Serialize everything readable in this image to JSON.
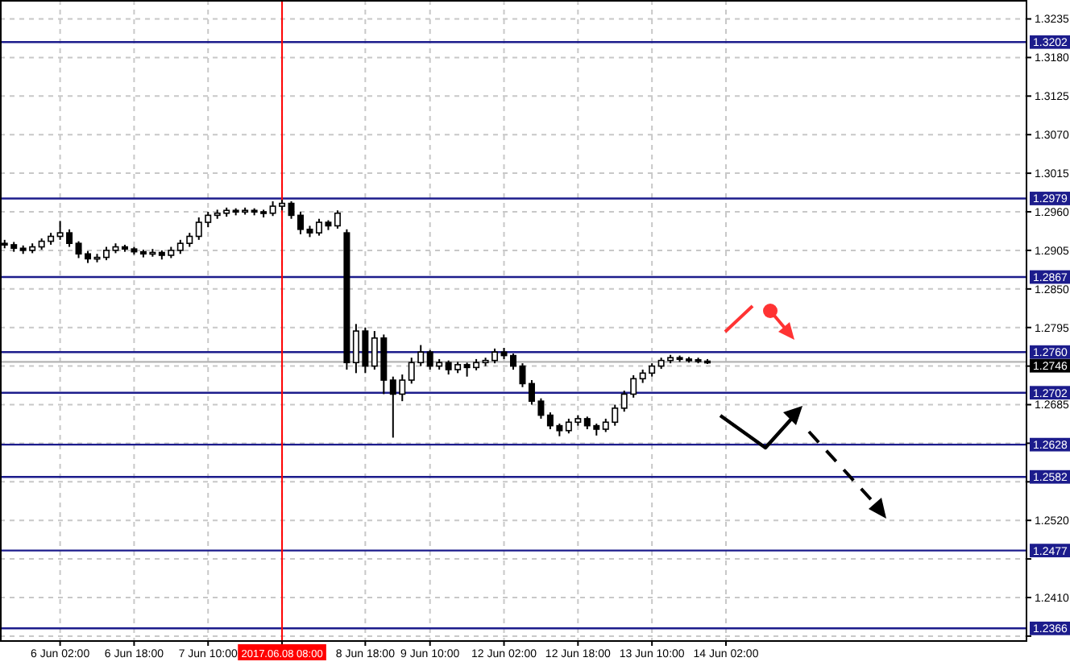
{
  "chart_data": {
    "type": "candlestick",
    "categories": [
      null,
      null,
      null,
      null,
      null,
      null,
      "6 Jun 02:00",
      null,
      null,
      null,
      null,
      null,
      null,
      null,
      "6 Jun 18:00",
      null,
      null,
      null,
      null,
      null,
      null,
      null,
      "7 Jun 10:00",
      null,
      null,
      null,
      null,
      null,
      null,
      null,
      "2017.06.08 08:00",
      null,
      null,
      null,
      null,
      null,
      null,
      null,
      null,
      "8 Jun 18:00",
      null,
      null,
      null,
      null,
      null,
      null,
      "9 Jun 10:00",
      null,
      null,
      null,
      null,
      null,
      null,
      null,
      "12 Jun 02:00",
      null,
      null,
      null,
      null,
      null,
      null,
      null,
      "12 Jun 18:00",
      null,
      null,
      null,
      null,
      null,
      null,
      null,
      "13 Jun 10:00",
      null,
      null,
      null,
      null,
      null,
      null,
      null,
      "14 Jun 02:00",
      null,
      null,
      null,
      null,
      null,
      null,
      null,
      null,
      null,
      null,
      null,
      null,
      null,
      null,
      null,
      null,
      null,
      null,
      null,
      null,
      null,
      null,
      null,
      null,
      null,
      null,
      null,
      null,
      null,
      null,
      null,
      null
    ],
    "ohlc": [
      [
        1.2915,
        1.292,
        1.2908,
        1.2913
      ],
      [
        1.2913,
        1.2917,
        1.2903,
        1.2908
      ],
      [
        1.2908,
        1.2912,
        1.29,
        1.2905
      ],
      [
        1.2905,
        1.2915,
        1.2901,
        1.291
      ],
      [
        1.291,
        1.2922,
        1.2906,
        1.2918
      ],
      [
        1.2918,
        1.293,
        1.2913,
        1.2925
      ],
      [
        1.2925,
        1.2947,
        1.292,
        1.293
      ],
      [
        1.293,
        1.2935,
        1.291,
        1.2915
      ],
      [
        1.2915,
        1.2918,
        1.2894,
        1.29
      ],
      [
        1.29,
        1.2904,
        1.2887,
        1.2893
      ],
      [
        1.2893,
        1.29,
        1.2888,
        1.2895
      ],
      [
        1.2895,
        1.291,
        1.2891,
        1.2905
      ],
      [
        1.2905,
        1.2915,
        1.2901,
        1.291
      ],
      [
        1.291,
        1.2913,
        1.2903,
        1.2907
      ],
      [
        1.2907,
        1.291,
        1.2899,
        1.2903
      ],
      [
        1.2903,
        1.2906,
        1.2895,
        1.29
      ],
      [
        1.29,
        1.2907,
        1.2896,
        1.2902
      ],
      [
        1.2902,
        1.2905,
        1.2892,
        1.2898
      ],
      [
        1.2898,
        1.291,
        1.2894,
        1.2905
      ],
      [
        1.2905,
        1.292,
        1.29,
        1.2915
      ],
      [
        1.2915,
        1.293,
        1.291,
        1.2925
      ],
      [
        1.2925,
        1.2952,
        1.292,
        1.2945
      ],
      [
        1.2945,
        1.296,
        1.2938,
        1.2955
      ],
      [
        1.2955,
        1.2963,
        1.295,
        1.2958
      ],
      [
        1.2958,
        1.2966,
        1.2953,
        1.2962
      ],
      [
        1.2962,
        1.2965,
        1.2955,
        1.296
      ],
      [
        1.296,
        1.2966,
        1.2956,
        1.2962
      ],
      [
        1.2962,
        1.2965,
        1.2955,
        1.296
      ],
      [
        1.296,
        1.2963,
        1.2952,
        1.2958
      ],
      [
        1.2958,
        1.2975,
        1.2954,
        1.2968
      ],
      [
        1.2968,
        1.2977,
        1.2962,
        1.2972
      ],
      [
        1.2972,
        1.2975,
        1.295,
        1.2955
      ],
      [
        1.2955,
        1.296,
        1.2928,
        1.2935
      ],
      [
        1.2935,
        1.294,
        1.2924,
        1.293
      ],
      [
        1.293,
        1.295,
        1.2926,
        1.2945
      ],
      [
        1.2945,
        1.2948,
        1.2934,
        1.294
      ],
      [
        1.294,
        1.2962,
        1.2936,
        1.2958
      ],
      [
        1.293,
        1.2935,
        1.2735,
        1.2745
      ],
      [
        1.2745,
        1.28,
        1.273,
        1.279
      ],
      [
        1.279,
        1.2795,
        1.273,
        1.274
      ],
      [
        1.274,
        1.279,
        1.2735,
        1.278
      ],
      [
        1.278,
        1.2785,
        1.27,
        1.272
      ],
      [
        1.272,
        1.2725,
        1.2638,
        1.27
      ],
      [
        1.27,
        1.2728,
        1.269,
        1.272
      ],
      [
        1.272,
        1.2752,
        1.2715,
        1.2745
      ],
      [
        1.2745,
        1.277,
        1.274,
        1.276
      ],
      [
        1.276,
        1.2763,
        1.2735,
        1.274
      ],
      [
        1.274,
        1.275,
        1.2735,
        1.2745
      ],
      [
        1.2745,
        1.2748,
        1.2728,
        1.2735
      ],
      [
        1.2735,
        1.2746,
        1.273,
        1.2742
      ],
      [
        1.2742,
        1.2745,
        1.2725,
        1.2738
      ],
      [
        1.2738,
        1.275,
        1.2734,
        1.2745
      ],
      [
        1.2745,
        1.2752,
        1.274,
        1.2748
      ],
      [
        1.2748,
        1.2765,
        1.2744,
        1.276
      ],
      [
        1.276,
        1.2766,
        1.275,
        1.2755
      ],
      [
        1.2755,
        1.2758,
        1.2735,
        1.274
      ],
      [
        1.274,
        1.2744,
        1.271,
        1.2715
      ],
      [
        1.2715,
        1.272,
        1.2685,
        1.269
      ],
      [
        1.269,
        1.2694,
        1.2665,
        1.267
      ],
      [
        1.267,
        1.2674,
        1.265,
        1.2655
      ],
      [
        1.2655,
        1.2658,
        1.264,
        1.2648
      ],
      [
        1.2648,
        1.2665,
        1.2644,
        1.266
      ],
      [
        1.266,
        1.267,
        1.2655,
        1.2665
      ],
      [
        1.2665,
        1.2668,
        1.265,
        1.2655
      ],
      [
        1.2655,
        1.2658,
        1.2641,
        1.265
      ],
      [
        1.265,
        1.2665,
        1.2646,
        1.266
      ],
      [
        1.266,
        1.2685,
        1.2655,
        1.268
      ],
      [
        1.268,
        1.2705,
        1.2675,
        1.27
      ],
      [
        1.27,
        1.2727,
        1.2695,
        1.2722
      ],
      [
        1.2722,
        1.2735,
        1.2716,
        1.273
      ],
      [
        1.273,
        1.2744,
        1.2725,
        1.274
      ],
      [
        1.274,
        1.2752,
        1.2736,
        1.2748
      ],
      [
        1.2748,
        1.2756,
        1.2744,
        1.2752
      ],
      [
        1.2752,
        1.2755,
        1.2746,
        1.275
      ],
      [
        1.275,
        1.2753,
        1.2745,
        1.2749
      ],
      [
        1.2749,
        1.2752,
        1.2744,
        1.2747
      ],
      [
        1.2747,
        1.275,
        1.2743,
        1.2746
      ],
      null,
      null,
      null,
      null,
      null,
      null,
      null,
      null,
      null,
      null,
      null,
      null,
      null,
      null,
      null,
      null,
      null,
      null,
      null,
      null,
      null,
      null,
      null,
      null,
      null,
      null,
      null,
      null,
      null,
      null,
      null,
      null,
      null,
      null
    ],
    "ylim": [
      1.2348,
      1.3262
    ],
    "yticks": [
      {
        "value": 1.2355,
        "label": null
      },
      {
        "value": 1.241,
        "label": "1.2410"
      },
      {
        "value": 1.2465,
        "label": null
      },
      {
        "value": 1.252,
        "label": "1.2520"
      },
      {
        "value": 1.2575,
        "label": null
      },
      {
        "value": 1.263,
        "label": null
      },
      1.2685,
      {
        "value": 1.274,
        "label": null
      },
      1.2795,
      {
        "value": 1.285,
        "label": "1.2850"
      },
      1.2905,
      {
        "value": 1.296,
        "label": "1.2960"
      },
      1.3015,
      {
        "value": 1.307,
        "label": "1.3070"
      },
      1.3125,
      {
        "value": 1.318,
        "label": "1.3180"
      },
      1.3235
    ],
    "grid": true,
    "ref_lines": [
      {
        "axis": "y",
        "value": 1.3202,
        "label": "1.3202",
        "color": "#1c1c8c"
      },
      {
        "axis": "y",
        "value": 1.2979,
        "label": "1.2979",
        "color": "#1c1c8c"
      },
      {
        "axis": "y",
        "value": 1.2867,
        "label": "1.2867",
        "color": "#1c1c8c"
      },
      {
        "axis": "y",
        "value": 1.276,
        "label": "1.2760",
        "color": "#1c1c8c"
      },
      {
        "axis": "y",
        "value": 1.2746,
        "label": "1.2746",
        "color": "#b4b4b4"
      },
      {
        "axis": "y",
        "value": 1.2702,
        "label": "1.2702",
        "color": "#1c1c8c"
      },
      {
        "axis": "y",
        "value": 1.2628,
        "label": "1.2628",
        "color": "#1c1c8c"
      },
      {
        "axis": "y",
        "value": 1.2582,
        "label": "1.2582",
        "color": "#1c1c8c"
      },
      {
        "axis": "y",
        "value": 1.2477,
        "label": "1.2477",
        "color": "#1c1c8c"
      },
      {
        "axis": "y",
        "value": 1.2366,
        "label": "1.2366",
        "color": "#1c1c8c"
      },
      {
        "axis": "x",
        "value": "2017.06.08 08:00",
        "color": "#ff0000"
      }
    ]
  }
}
